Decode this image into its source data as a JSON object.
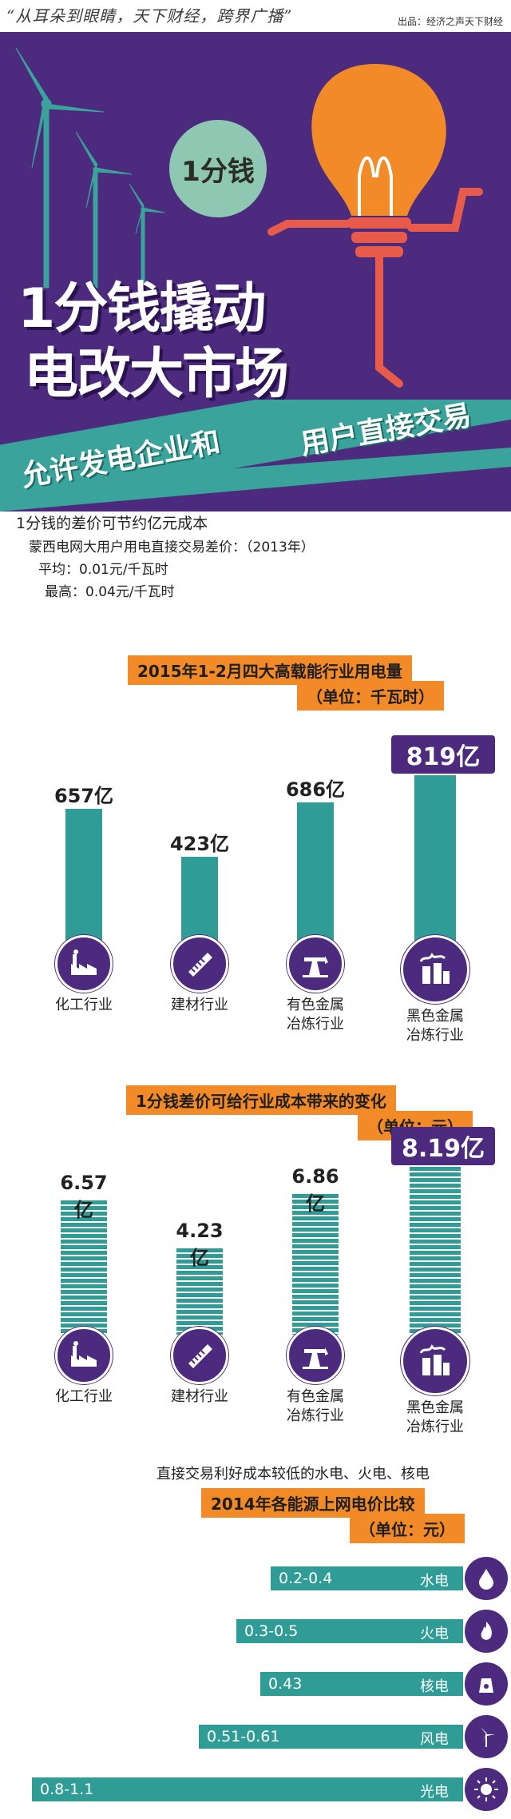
{
  "header": {
    "slogan": "“从耳朵到眼睛，天下财经，跨界广播”",
    "source": "出品：经济之声天下财经"
  },
  "hero": {
    "badge": "1分钱",
    "title_line1": "1分钱撬动",
    "title_line2": "电改大市场",
    "band_left": "允许发电企业和",
    "band_right": "用户直接交易"
  },
  "intro": {
    "title": "1分钱的差价可节约亿元成本",
    "line1": "蒙西电网大用户用电直接交易差价：（2013年）",
    "line2": "平均：0.01元/千瓦时",
    "line3": "最高：0.04元/千瓦时"
  },
  "chart_data": [
    {
      "type": "bar",
      "title": "2015年1-2月四大高载能行业用电量",
      "unit": "（单位：千瓦时）",
      "categories": [
        "化工行业",
        "建材行业",
        "有色金属冶炼行业",
        "黑色金属冶炼行业"
      ],
      "values": [
        657,
        423,
        686,
        819
      ],
      "value_labels": [
        "657亿",
        "423亿",
        "686亿",
        "819亿"
      ],
      "icons": [
        "factory-icon",
        "saw-icon",
        "oil-pump-icon",
        "steel-plant-icon"
      ]
    },
    {
      "type": "bar",
      "title": "1分钱差价可给行业成本带来的变化",
      "unit": "（单位：元）",
      "categories": [
        "化工行业",
        "建材行业",
        "有色金属冶炼行业",
        "黑色金属冶炼行业"
      ],
      "values": [
        6.57,
        4.23,
        6.86,
        8.19
      ],
      "value_labels": [
        "6.57亿",
        "4.23亿",
        "6.86亿",
        "8.19亿"
      ],
      "icons": [
        "factory-icon",
        "saw-icon",
        "oil-pump-icon",
        "steel-plant-icon"
      ]
    },
    {
      "type": "bar",
      "orientation": "horizontal",
      "subtitle": "直接交易利好成本较低的水电、火电、核电",
      "title": "2014年各能源上网电价比较",
      "unit": "（单位：元）",
      "categories": [
        "水电",
        "火电",
        "核电",
        "风电",
        "光电"
      ],
      "ranges": [
        [
          0.2,
          0.4
        ],
        [
          0.3,
          0.5
        ],
        [
          0.43,
          0.43
        ],
        [
          0.51,
          0.61
        ],
        [
          0.8,
          1.1
        ]
      ],
      "value_labels": [
        "0.2-0.4",
        "0.3-0.5",
        "0.43",
        "0.51-0.61",
        "0.8-1.1"
      ],
      "icons": [
        "water-drop-icon",
        "flame-icon",
        "nuclear-icon",
        "wind-turbine-icon",
        "sun-icon"
      ]
    }
  ],
  "labels": {
    "cat1": "化工行业",
    "cat2": "建材行业",
    "cat3a": "有色金属",
    "cat3b": "冶炼行业",
    "cat4a": "黑色金属",
    "cat4b": "冶炼行业"
  },
  "colors": {
    "purple": "#4c2a7d",
    "teal": "#2f9c96",
    "orange": "#f28a27"
  }
}
